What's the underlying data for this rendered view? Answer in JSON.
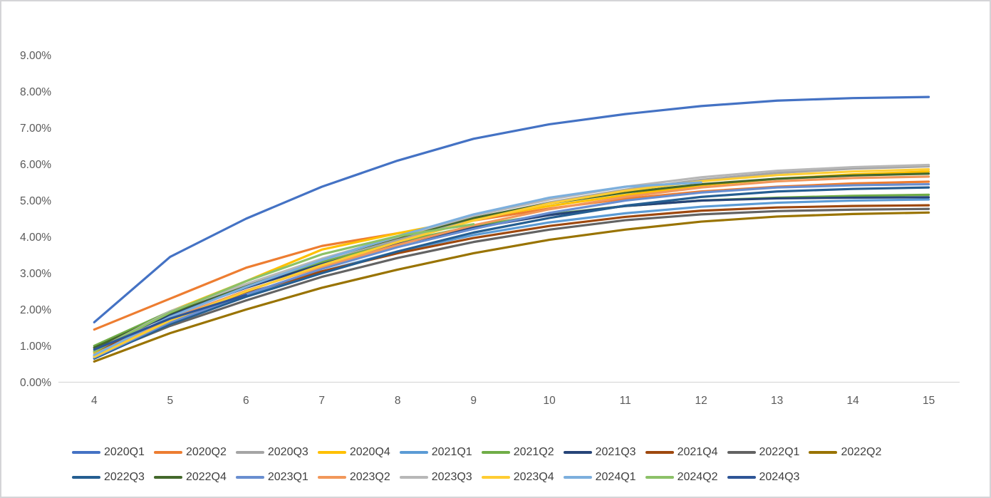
{
  "page": {
    "background_color": "#ffffff",
    "border_color": "#d4d4d7"
  },
  "chart_data": {
    "type": "line",
    "title": "",
    "xlabel": "",
    "ylabel": "",
    "grid": false,
    "legend_position": "bottom",
    "axis_line_color": "#d9d9d9",
    "tick_label_color": "#595959",
    "legend_text_color": "#3f3f3f",
    "xlim": [
      4,
      15
    ],
    "ylim_percent": [
      0,
      9
    ],
    "x": [
      4,
      5,
      6,
      7,
      8,
      9,
      10,
      11,
      12,
      13,
      14,
      15
    ],
    "x_tick_labels": [
      "4",
      "5",
      "6",
      "7",
      "8",
      "9",
      "10",
      "11",
      "12",
      "13",
      "14",
      "15"
    ],
    "y_tick_labels": [
      "0.00%",
      "1.00%",
      "2.00%",
      "3.00%",
      "4.00%",
      "5.00%",
      "6.00%",
      "7.00%",
      "8.00%",
      "9.00%"
    ],
    "series": [
      {
        "name": "2020Q1",
        "color": "#4472C4",
        "values_percent": [
          1.65,
          3.45,
          4.5,
          5.38,
          6.1,
          6.7,
          7.1,
          7.38,
          7.6,
          7.75,
          7.82,
          7.85
        ]
      },
      {
        "name": "2020Q2",
        "color": "#ED7D31",
        "values_percent": [
          1.45,
          2.3,
          3.15,
          3.75,
          4.1,
          4.45,
          4.78,
          5.05,
          5.25,
          5.38,
          5.47,
          5.52
        ]
      },
      {
        "name": "2020Q3",
        "color": "#A5A5A5",
        "values_percent": [
          0.8,
          1.9,
          2.62,
          3.3,
          3.92,
          4.5,
          4.95,
          5.3,
          5.57,
          5.76,
          5.88,
          5.94
        ]
      },
      {
        "name": "2020Q4",
        "color": "#FFC000",
        "values_percent": [
          0.82,
          1.95,
          2.78,
          3.65,
          4.1,
          4.5,
          4.85,
          5.15,
          5.42,
          5.6,
          5.72,
          5.8
        ]
      },
      {
        "name": "2021Q1",
        "color": "#5B9BD5",
        "values_percent": [
          0.73,
          1.65,
          2.4,
          3.05,
          3.6,
          4.05,
          4.4,
          4.65,
          4.83,
          4.94,
          5.0,
          5.03
        ]
      },
      {
        "name": "2021Q2",
        "color": "#70AD47",
        "values_percent": [
          1.0,
          1.95,
          2.65,
          3.3,
          3.85,
          4.3,
          4.62,
          4.85,
          5.0,
          5.08,
          5.13,
          5.16
        ]
      },
      {
        "name": "2021Q3",
        "color": "#264478",
        "values_percent": [
          0.95,
          1.85,
          2.6,
          3.25,
          3.8,
          4.25,
          4.6,
          4.85,
          5.0,
          5.06,
          5.08,
          5.09
        ]
      },
      {
        "name": "2021Q4",
        "color": "#9E480E",
        "values_percent": [
          0.85,
          1.75,
          2.45,
          3.05,
          3.55,
          3.97,
          4.3,
          4.55,
          4.72,
          4.81,
          4.85,
          4.87
        ]
      },
      {
        "name": "2022Q1",
        "color": "#636363",
        "values_percent": [
          0.7,
          1.55,
          2.25,
          2.9,
          3.42,
          3.86,
          4.2,
          4.46,
          4.62,
          4.71,
          4.75,
          4.77
        ]
      },
      {
        "name": "2022Q2",
        "color": "#997300",
        "values_percent": [
          0.57,
          1.35,
          2.0,
          2.6,
          3.1,
          3.55,
          3.92,
          4.2,
          4.42,
          4.56,
          4.63,
          4.67
        ]
      },
      {
        "name": "2022Q3",
        "color": "#255E91",
        "values_percent": [
          0.65,
          1.6,
          2.35,
          3.0,
          3.6,
          4.12,
          4.52,
          4.86,
          5.1,
          5.25,
          5.32,
          5.36
        ]
      },
      {
        "name": "2022Q4",
        "color": "#43682B",
        "values_percent": [
          0.95,
          1.9,
          2.68,
          3.38,
          3.98,
          4.52,
          4.92,
          5.22,
          5.45,
          5.6,
          5.69,
          5.74
        ]
      },
      {
        "name": "2023Q1",
        "color": "#698ED0",
        "values_percent": [
          0.68,
          1.65,
          2.42,
          3.12,
          3.72,
          4.22,
          4.66,
          5.0,
          5.22,
          5.36,
          5.42,
          5.45
        ]
      },
      {
        "name": "2023Q2",
        "color": "#F1975A",
        "values_percent": [
          0.75,
          1.75,
          2.52,
          3.18,
          3.78,
          4.32,
          4.76,
          5.1,
          5.36,
          5.53,
          5.62,
          5.66
        ]
      },
      {
        "name": "2023Q3",
        "color": "#B7B7B7",
        "values_percent": [
          0.85,
          1.95,
          2.7,
          3.4,
          4.0,
          4.58,
          5.03,
          5.38,
          5.64,
          5.82,
          5.92,
          5.98
        ]
      },
      {
        "name": "2023Q4",
        "color": "#FFCD33",
        "values_percent": [
          0.7,
          1.7,
          2.5,
          3.22,
          3.86,
          4.45,
          4.92,
          5.27,
          5.53,
          5.7,
          5.8,
          5.86
        ]
      },
      {
        "name": "2024Q1",
        "color": "#7CAFDD",
        "values_percent": [
          0.75,
          1.8,
          2.62,
          3.36,
          4.02,
          4.62,
          5.08,
          5.38,
          5.5
        ]
      },
      {
        "name": "2024Q2",
        "color": "#8CC168",
        "values_percent": [
          0.85,
          1.92,
          2.78,
          3.52,
          4.02,
          4.35
        ]
      },
      {
        "name": "2024Q3",
        "color": "#2E5596",
        "values_percent": [
          0.9,
          1.75,
          2.4
        ]
      }
    ]
  },
  "legend": {
    "row_1_count": 10,
    "row_2_count": 9
  }
}
